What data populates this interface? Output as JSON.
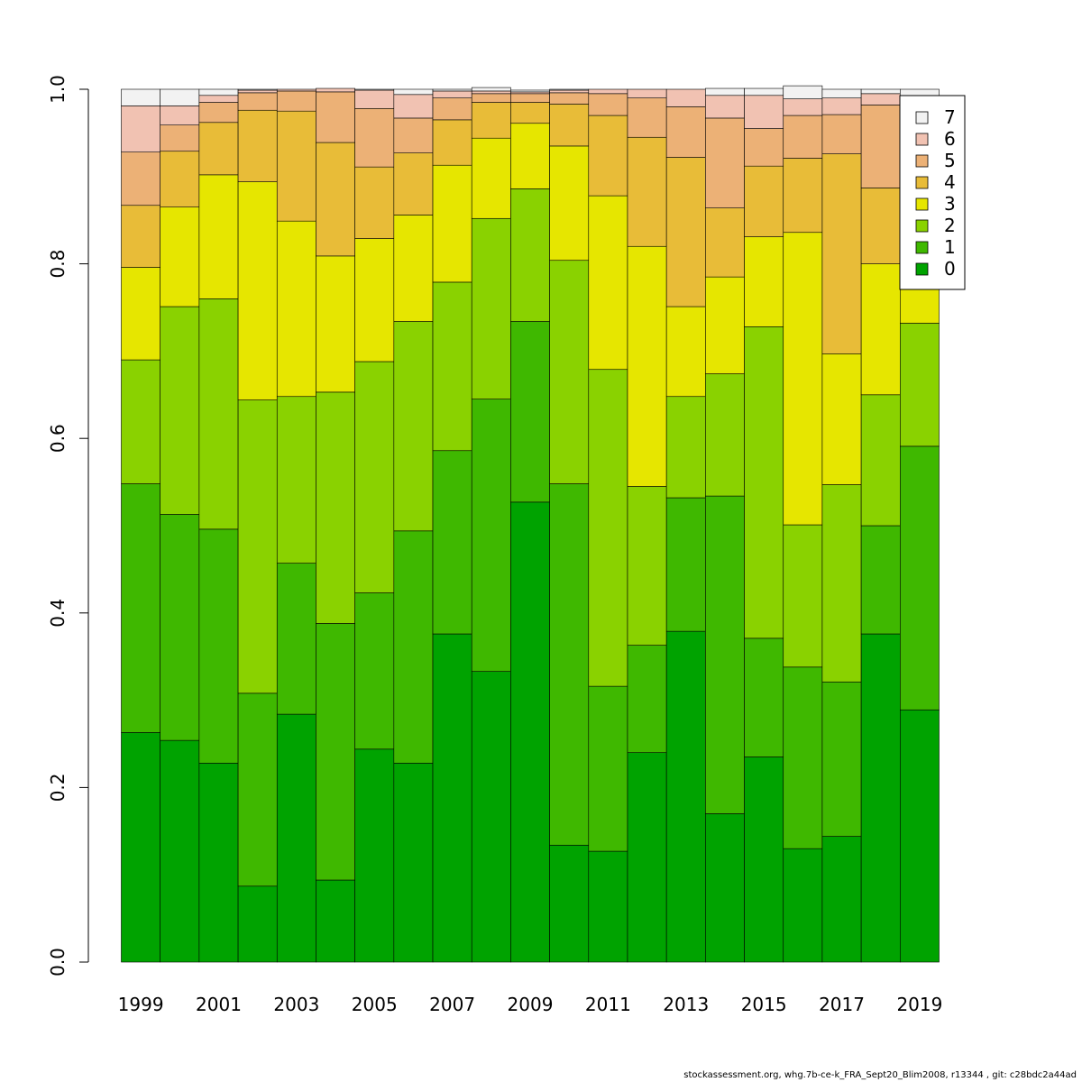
{
  "chart_data": {
    "type": "bar",
    "stacked": true,
    "ylim": [
      0,
      1
    ],
    "yticks": [
      "0.0",
      "0.2",
      "0.4",
      "0.6",
      "0.8",
      "1.0"
    ],
    "categories": [
      "1999",
      "2000",
      "2001",
      "2002",
      "2003",
      "2004",
      "2005",
      "2006",
      "2007",
      "2008",
      "2009",
      "2010",
      "2011",
      "2012",
      "2013",
      "2014",
      "2015",
      "2016",
      "2017",
      "2018",
      "2019"
    ],
    "xtick_labels": [
      "1999",
      "2001",
      "2003",
      "2005",
      "2007",
      "2009",
      "2011",
      "2013",
      "2015",
      "2017",
      "2019"
    ],
    "series": [
      {
        "name": "0",
        "color": "#00a300",
        "values": [
          0.263,
          0.254,
          0.228,
          0.087,
          0.284,
          0.094,
          0.244,
          0.228,
          0.376,
          0.333,
          0.527,
          0.134,
          0.127,
          0.24,
          0.379,
          0.17,
          0.235,
          0.13,
          0.144,
          0.376,
          0.289
        ]
      },
      {
        "name": "1",
        "color": "#3fb800",
        "values": [
          0.285,
          0.259,
          0.268,
          0.221,
          0.173,
          0.294,
          0.179,
          0.266,
          0.21,
          0.312,
          0.207,
          0.414,
          0.189,
          0.123,
          0.153,
          0.364,
          0.136,
          0.208,
          0.177,
          0.124,
          0.302
        ]
      },
      {
        "name": "2",
        "color": "#8ad200",
        "values": [
          0.142,
          0.238,
          0.264,
          0.336,
          0.191,
          0.265,
          0.265,
          0.24,
          0.193,
          0.207,
          0.152,
          0.256,
          0.363,
          0.182,
          0.116,
          0.14,
          0.357,
          0.163,
          0.226,
          0.15,
          0.141
        ]
      },
      {
        "name": "3",
        "color": "#e6e600",
        "values": [
          0.106,
          0.114,
          0.142,
          0.25,
          0.201,
          0.156,
          0.141,
          0.122,
          0.134,
          0.092,
          0.075,
          0.131,
          0.199,
          0.275,
          0.103,
          0.111,
          0.103,
          0.335,
          0.15,
          0.15,
          0.09
        ]
      },
      {
        "name": "4",
        "color": "#e8bc38",
        "values": [
          0.071,
          0.064,
          0.06,
          0.082,
          0.126,
          0.13,
          0.082,
          0.071,
          0.052,
          0.041,
          0.024,
          0.048,
          0.092,
          0.125,
          0.171,
          0.079,
          0.081,
          0.085,
          0.229,
          0.087,
          0.11
        ]
      },
      {
        "name": "5",
        "color": "#ecb176",
        "values": [
          0.061,
          0.03,
          0.023,
          0.02,
          0.023,
          0.058,
          0.067,
          0.04,
          0.025,
          0.01,
          0.01,
          0.013,
          0.025,
          0.045,
          0.058,
          0.103,
          0.043,
          0.049,
          0.045,
          0.095,
          0.04
        ]
      },
      {
        "name": "6",
        "color": "#f1c2b2",
        "values": [
          0.053,
          0.022,
          0.008,
          0.003,
          0.002,
          0.004,
          0.021,
          0.027,
          0.008,
          0.003,
          0.002,
          0.003,
          0.005,
          0.01,
          0.02,
          0.026,
          0.038,
          0.019,
          0.019,
          0.013,
          0.02
        ]
      },
      {
        "name": "7",
        "color": "#f2f2f2",
        "values": [
          0.019,
          0.019,
          0.007,
          0.001,
          0.0,
          0.0,
          0.001,
          0.006,
          0.002,
          0.004,
          0.002,
          0.001,
          0.0,
          0.0,
          0.0,
          0.008,
          0.008,
          0.015,
          0.01,
          0.005,
          0.008
        ]
      }
    ],
    "legend": {
      "position": "top-right",
      "order": [
        "7",
        "6",
        "5",
        "4",
        "3",
        "2",
        "1",
        "0"
      ]
    }
  },
  "footer": {
    "text": "stockassessment.org, whg.7b-ce-k_FRA_Sept20_Blim2008, r13344 , git: c28bdc2a44ad"
  }
}
